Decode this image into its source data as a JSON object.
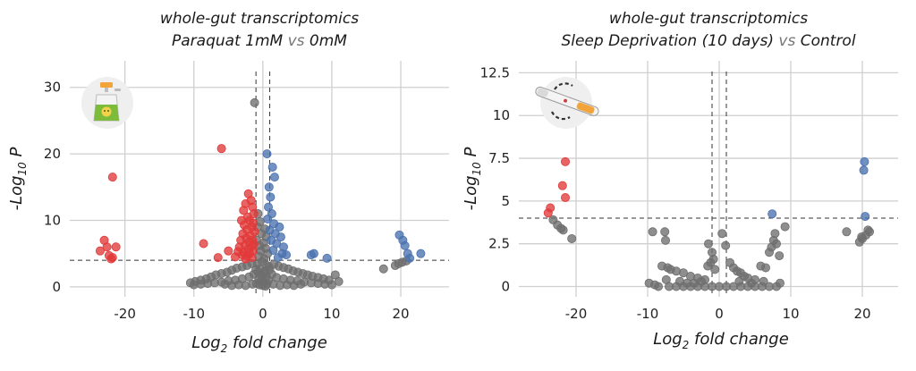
{
  "colors": {
    "grey": "#6e6e6e",
    "red": "#e23a3a",
    "blue": "#4a72b0",
    "grid": "#cfcfcf",
    "threshold_line": "#333333"
  },
  "chart_data": [
    {
      "type": "scatter",
      "title_line1": "whole-gut transcriptomics",
      "title_line2_a": "Paraquat 1mM",
      "title_line2_vs": "vs",
      "title_line2_b": "0mM",
      "xlabel": "Log2 fold change",
      "ylabel": "-Log10 P",
      "xlim": [
        -28,
        27
      ],
      "ylim": [
        -1.5,
        34
      ],
      "xticks": [
        -20,
        -10,
        0,
        10,
        20
      ],
      "xtick_labels": [
        "-20",
        "-10",
        "0",
        "10",
        "20"
      ],
      "yticks": [
        0,
        10,
        20,
        30
      ],
      "ytick_labels": [
        "0",
        "10",
        "20",
        "30"
      ],
      "grid": true,
      "thresholds": {
        "x": [
          -1,
          1
        ],
        "y": 4
      },
      "icon": "paraquat-bottle-icon",
      "series": [
        {
          "group": "up",
          "color": "#4a72b0",
          "points": [
            [
              0.6,
              20
            ],
            [
              1.4,
              18
            ],
            [
              1.7,
              16.5
            ],
            [
              0.9,
              15
            ],
            [
              1.1,
              13.5
            ],
            [
              0.8,
              12
            ],
            [
              1.3,
              11
            ],
            [
              0.7,
              10.2
            ],
            [
              1.6,
              9.5
            ],
            [
              2.4,
              9
            ],
            [
              1.0,
              8.5
            ],
            [
              1.8,
              8
            ],
            [
              2.6,
              7.5
            ],
            [
              1.2,
              7
            ],
            [
              2.0,
              6.5
            ],
            [
              3.0,
              6
            ],
            [
              1.5,
              5.5
            ],
            [
              2.8,
              5
            ],
            [
              3.4,
              4.8
            ],
            [
              2.2,
              4.4
            ],
            [
              7.4,
              5
            ],
            [
              7.0,
              4.8
            ],
            [
              9.3,
              4.3
            ],
            [
              19.8,
              7.8
            ],
            [
              20.3,
              7
            ],
            [
              20.6,
              6.2
            ],
            [
              21.0,
              5
            ],
            [
              21.3,
              4.3
            ],
            [
              22.9,
              5
            ]
          ]
        },
        {
          "group": "down",
          "color": "#e23a3a",
          "points": [
            [
              -6.0,
              20.8
            ],
            [
              -2.1,
              14
            ],
            [
              -1.7,
              13
            ],
            [
              -2.5,
              12.5
            ],
            [
              -1.5,
              12
            ],
            [
              -2.8,
              11.5
            ],
            [
              -1.3,
              11
            ],
            [
              -2.2,
              10.5
            ],
            [
              -1.9,
              10
            ],
            [
              -3.1,
              10
            ],
            [
              -1.4,
              9.6
            ],
            [
              -2.7,
              9.3
            ],
            [
              -1.6,
              9
            ],
            [
              -2.3,
              8.6
            ],
            [
              -1.2,
              8.3
            ],
            [
              -2.9,
              8
            ],
            [
              -1.8,
              7.7
            ],
            [
              -2.4,
              7.3
            ],
            [
              -1.5,
              7
            ],
            [
              -3.2,
              7
            ],
            [
              -2.0,
              6.7
            ],
            [
              -1.3,
              6.4
            ],
            [
              -2.6,
              6.2
            ],
            [
              -1.7,
              6
            ],
            [
              -3.4,
              6
            ],
            [
              -2.1,
              5.7
            ],
            [
              -1.4,
              5.4
            ],
            [
              -2.8,
              5.2
            ],
            [
              -1.9,
              5
            ],
            [
              -3.0,
              4.8
            ],
            [
              -2.3,
              4.6
            ],
            [
              -1.6,
              4.4
            ],
            [
              -2.5,
              4.2
            ],
            [
              -4.0,
              4.5
            ],
            [
              -3.6,
              5.3
            ],
            [
              -5.0,
              5.4
            ],
            [
              -6.5,
              4.4
            ],
            [
              -8.6,
              6.5
            ],
            [
              -21.8,
              16.5
            ],
            [
              -23.0,
              7
            ],
            [
              -22.6,
              6
            ],
            [
              -21.3,
              6
            ],
            [
              -23.6,
              5.4
            ],
            [
              -22.3,
              4.7
            ],
            [
              -21.8,
              4.4
            ],
            [
              -22.0,
              4.2
            ]
          ]
        },
        {
          "group": "ns",
          "color": "#6e6e6e",
          "points": [
            [
              -1.2,
              27.7
            ],
            [
              -0.7,
              11
            ],
            [
              -0.4,
              9.8
            ],
            [
              -0.8,
              9
            ],
            [
              0.3,
              8.7
            ],
            [
              -0.2,
              8
            ],
            [
              0.5,
              7.5
            ],
            [
              -0.9,
              7
            ],
            [
              0.1,
              6.6
            ],
            [
              -0.5,
              6.2
            ],
            [
              0.4,
              5.8
            ],
            [
              -0.3,
              5.4
            ],
            [
              0.7,
              5
            ],
            [
              -0.6,
              4.6
            ],
            [
              0.2,
              4.2
            ],
            [
              -0.1,
              3.8
            ],
            [
              -0.8,
              3.5
            ],
            [
              0.6,
              3.2
            ],
            [
              0.9,
              3
            ],
            [
              -0.4,
              2.7
            ],
            [
              0.3,
              2.4
            ],
            [
              -0.7,
              2.2
            ],
            [
              0.1,
              2
            ],
            [
              -0.2,
              1.7
            ],
            [
              0.5,
              1.5
            ],
            [
              -0.6,
              1.2
            ],
            [
              0.8,
              1
            ],
            [
              -0.3,
              0.8
            ],
            [
              0.2,
              0.6
            ],
            [
              -0.9,
              0.5
            ],
            [
              0.6,
              0.4
            ],
            [
              -0.5,
              0.3
            ],
            [
              0.0,
              0.2
            ],
            [
              0.4,
              0.1
            ],
            [
              -1.6,
              3.5
            ],
            [
              -2.3,
              3.2
            ],
            [
              -3.0,
              3
            ],
            [
              -3.8,
              2.8
            ],
            [
              -4.5,
              2.5
            ],
            [
              -5.2,
              2.2
            ],
            [
              -6.0,
              2
            ],
            [
              -6.8,
              1.8
            ],
            [
              -7.5,
              1.5
            ],
            [
              -8.2,
              1.2
            ],
            [
              -9.0,
              1
            ],
            [
              -9.8,
              0.8
            ],
            [
              -10.5,
              0.6
            ],
            [
              1.6,
              3.4
            ],
            [
              2.3,
              3.1
            ],
            [
              3.0,
              2.9
            ],
            [
              3.7,
              2.7
            ],
            [
              4.4,
              2.4
            ],
            [
              5.1,
              2.2
            ],
            [
              5.8,
              2
            ],
            [
              6.5,
              1.8
            ],
            [
              7.2,
              1.6
            ],
            [
              8.0,
              1.4
            ],
            [
              8.8,
              1.2
            ],
            [
              9.6,
              1
            ],
            [
              10.5,
              1.8
            ],
            [
              11.0,
              0.8
            ],
            [
              -2.0,
              1.5
            ],
            [
              -3.0,
              1.2
            ],
            [
              -4.0,
              1
            ],
            [
              -5.0,
              0.9
            ],
            [
              -6.0,
              0.7
            ],
            [
              -7.0,
              0.6
            ],
            [
              -8.0,
              0.5
            ],
            [
              -9.0,
              0.4
            ],
            [
              -10.0,
              0.3
            ],
            [
              2.0,
              1.4
            ],
            [
              3.0,
              1.2
            ],
            [
              4.0,
              1
            ],
            [
              5.0,
              0.9
            ],
            [
              6.0,
              0.7
            ],
            [
              7.0,
              0.6
            ],
            [
              8.0,
              0.5
            ],
            [
              9.0,
              0.4
            ],
            [
              10.0,
              0.3
            ],
            [
              -1.5,
              0.4
            ],
            [
              1.5,
              0.4
            ],
            [
              -2.5,
              0.2
            ],
            [
              2.5,
              0.2
            ],
            [
              -3.5,
              0.3
            ],
            [
              3.5,
              0.3
            ],
            [
              -4.5,
              0.2
            ],
            [
              4.5,
              0.2
            ],
            [
              -5.5,
              0.4
            ],
            [
              5.5,
              0.4
            ],
            [
              17.5,
              2.7
            ],
            [
              19.2,
              3.2
            ],
            [
              19.7,
              3.5
            ],
            [
              20.2,
              3.7
            ],
            [
              20.8,
              3.9
            ],
            [
              -1.0,
              2.6
            ],
            [
              1.0,
              2.6
            ],
            [
              -1.3,
              1.9
            ],
            [
              1.3,
              1.9
            ]
          ]
        }
      ]
    },
    {
      "type": "scatter",
      "title_line1": "whole-gut transcriptomics",
      "title_line2_a": "Sleep Deprivation (10 days)",
      "title_line2_vs": "vs",
      "title_line2_b": "Control",
      "xlabel": "Log2 fold change",
      "ylabel": "-Log10 P",
      "xlim": [
        -28,
        25
      ],
      "ylim": [
        -0.6,
        13.2
      ],
      "xticks": [
        -20,
        -10,
        0,
        10,
        20
      ],
      "xtick_labels": [
        "-20",
        "-10",
        "0",
        "10",
        "20"
      ],
      "yticks": [
        0,
        2.5,
        5,
        7.5,
        10,
        12.5
      ],
      "ytick_labels": [
        "0",
        "2.5",
        "5",
        "7.5",
        "10",
        "12.5"
      ],
      "grid": true,
      "thresholds": {
        "x": [
          -1,
          1
        ],
        "y": 4
      },
      "icon": "sleep-deprivation-tube-icon",
      "series": [
        {
          "group": "up",
          "color": "#4a72b0",
          "points": [
            [
              7.4,
              4.25
            ],
            [
              20.3,
              7.3
            ],
            [
              20.2,
              6.8
            ],
            [
              20.4,
              4.1
            ]
          ]
        },
        {
          "group": "down",
          "color": "#e23a3a",
          "points": [
            [
              -21.5,
              7.3
            ],
            [
              -21.9,
              5.9
            ],
            [
              -21.5,
              5.2
            ],
            [
              -23.6,
              4.6
            ],
            [
              -23.9,
              4.3
            ]
          ]
        },
        {
          "group": "ns",
          "color": "#6e6e6e",
          "points": [
            [
              -23.2,
              3.9
            ],
            [
              -22.6,
              3.6
            ],
            [
              -22.1,
              3.4
            ],
            [
              -21.8,
              3.3
            ],
            [
              -20.6,
              2.8
            ],
            [
              -9.3,
              3.2
            ],
            [
              -7.6,
              3.2
            ],
            [
              -7.5,
              2.7
            ],
            [
              -8.0,
              1.2
            ],
            [
              -7.2,
              1.1
            ],
            [
              -6.8,
              1.0
            ],
            [
              -6.0,
              0.9
            ],
            [
              -5.0,
              0.8
            ],
            [
              -4.0,
              0.6
            ],
            [
              -3.0,
              0.5
            ],
            [
              -2.0,
              0.4
            ],
            [
              -1.5,
              2.5
            ],
            [
              -1.0,
              2.0
            ],
            [
              -0.8,
              1.6
            ],
            [
              -1.2,
              1.4
            ],
            [
              -1.6,
              1.2
            ],
            [
              -0.6,
              1.0
            ],
            [
              0.4,
              3.1
            ],
            [
              0.9,
              2.4
            ],
            [
              1.5,
              1.4
            ],
            [
              2.0,
              1.1
            ],
            [
              2.5,
              0.9
            ],
            [
              3.0,
              0.8
            ],
            [
              3.5,
              0.6
            ],
            [
              4.0,
              0.5
            ],
            [
              5.0,
              0.4
            ],
            [
              5.8,
              1.2
            ],
            [
              6.5,
              1.1
            ],
            [
              7.0,
              2.0
            ],
            [
              7.3,
              2.3
            ],
            [
              7.6,
              2.7
            ],
            [
              7.8,
              3.1
            ],
            [
              8.0,
              2.5
            ],
            [
              8.4,
              1.8
            ],
            [
              9.2,
              3.5
            ],
            [
              -9.8,
              0.2
            ],
            [
              -9.0,
              0.1
            ],
            [
              -8.5,
              0.0
            ],
            [
              -7.0,
              0.0
            ],
            [
              -6.0,
              0.0
            ],
            [
              -5.0,
              0.0
            ],
            [
              -4.0,
              0.0
            ],
            [
              -3.0,
              0.0
            ],
            [
              -2.0,
              0.0
            ],
            [
              -1.0,
              0.0
            ],
            [
              0.0,
              0.0
            ],
            [
              1.0,
              0.0
            ],
            [
              2.0,
              0.0
            ],
            [
              3.0,
              0.0
            ],
            [
              4.0,
              0.0
            ],
            [
              5.0,
              0.0
            ],
            [
              6.0,
              0.0
            ],
            [
              7.0,
              0.0
            ],
            [
              8.0,
              0.0
            ],
            [
              -5.5,
              0.3
            ],
            [
              -4.5,
              0.2
            ],
            [
              -3.5,
              0.2
            ],
            [
              -2.5,
              0.3
            ],
            [
              2.8,
              0.3
            ],
            [
              4.5,
              0.2
            ],
            [
              6.2,
              0.3
            ],
            [
              -7.4,
              0.4
            ],
            [
              8.5,
              0.2
            ],
            [
              17.8,
              3.2
            ],
            [
              19.6,
              2.6
            ],
            [
              20.0,
              2.8
            ],
            [
              20.5,
              3.0
            ],
            [
              21.0,
              3.2
            ],
            [
              20.8,
              3.3
            ],
            [
              19.9,
              2.9
            ]
          ]
        }
      ]
    }
  ]
}
